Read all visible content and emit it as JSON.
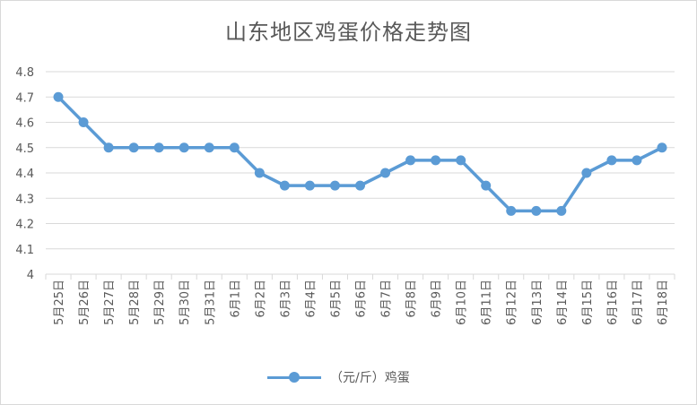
{
  "chart_data": {
    "type": "line",
    "title": "山东地区鸡蛋价格走势图",
    "categories": [
      "5月25日",
      "5月26日",
      "5月27日",
      "5月28日",
      "5月29日",
      "5月30日",
      "5月31日",
      "6月1日",
      "6月2日",
      "6月3日",
      "6月4日",
      "6月5日",
      "6月6日",
      "6月7日",
      "6月8日",
      "6月9日",
      "6月10日",
      "6月11日",
      "6月12日",
      "6月13日",
      "6月14日",
      "6月15日",
      "6月16日",
      "6月17日",
      "6月18日"
    ],
    "series": [
      {
        "name": "（元/斤）鸡蛋",
        "values": [
          4.7,
          4.6,
          4.5,
          4.5,
          4.5,
          4.5,
          4.5,
          4.5,
          4.4,
          4.35,
          4.35,
          4.35,
          4.35,
          4.4,
          4.45,
          4.45,
          4.45,
          4.35,
          4.25,
          4.25,
          4.25,
          4.4,
          4.45,
          4.45,
          4.5
        ]
      }
    ],
    "yticks": [
      "4",
      "4.1",
      "4.2",
      "4.3",
      "4.4",
      "4.5",
      "4.6",
      "4.7",
      "4.8"
    ],
    "ylim": [
      4,
      4.8
    ],
    "grid": true,
    "legend_position": "bottom",
    "colors": {
      "series": "#5b9bd5",
      "grid": "#d9d9d9",
      "text": "#595959"
    }
  }
}
